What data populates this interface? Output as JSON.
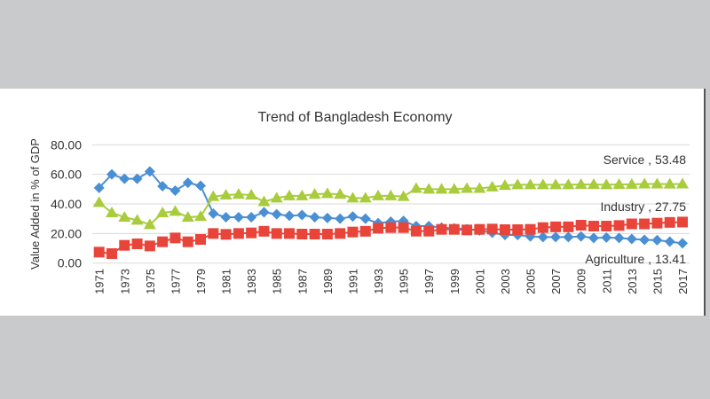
{
  "chart_data": {
    "type": "line",
    "title": "Trend of Bangladesh Economy",
    "xlabel": "",
    "ylabel": "Value Added in % of GDP",
    "ylim": [
      0,
      80
    ],
    "yticks": [
      "0.00",
      "20.00",
      "40.00",
      "60.00",
      "80.00"
    ],
    "grid": true,
    "x": [
      1971,
      1972,
      1973,
      1974,
      1975,
      1976,
      1977,
      1978,
      1979,
      1980,
      1981,
      1982,
      1983,
      1984,
      1985,
      1986,
      1987,
      1988,
      1989,
      1990,
      1991,
      1992,
      1993,
      1994,
      1995,
      1996,
      1997,
      1998,
      1999,
      2000,
      2001,
      2002,
      2003,
      2004,
      2005,
      2006,
      2007,
      2008,
      2009,
      2010,
      2011,
      2012,
      2013,
      2014,
      2015,
      2016,
      2017
    ],
    "xtick_labels": [
      "1971",
      "1973",
      "1975",
      "1977",
      "1979",
      "1981",
      "1983",
      "1985",
      "1987",
      "1989",
      "1991",
      "1993",
      "1995",
      "1997",
      "1999",
      "2001",
      "2003",
      "2005",
      "2007",
      "2009",
      "2011",
      "2013",
      "2015",
      "2017"
    ],
    "series": [
      {
        "name": "Agriculture",
        "color": "#4a8fd4",
        "marker": "diamond",
        "end_label": "Agriculture , 13.41",
        "values": [
          50.9,
          60,
          57,
          57,
          62,
          52,
          49,
          54.3,
          52.3,
          33.5,
          31,
          31,
          31,
          34.4,
          33,
          32,
          32.5,
          31,
          30.5,
          30,
          31.5,
          30,
          27,
          28,
          28.5,
          25,
          25,
          24,
          23.5,
          23,
          22,
          20.5,
          19,
          19,
          18,
          17.6,
          17.6,
          17.6,
          18,
          17,
          17.3,
          17,
          16.3,
          15.7,
          15.5,
          14.5,
          13.41
        ]
      },
      {
        "name": "Industry",
        "color": "#e8443a",
        "marker": "square",
        "end_label": "Industry , 27.75",
        "values": [
          7.4,
          6.4,
          12,
          13,
          11.6,
          14.4,
          17,
          14.4,
          16,
          20,
          19.4,
          20,
          20.4,
          21.5,
          20,
          20,
          19.6,
          19.6,
          19.6,
          20,
          21,
          21.5,
          23.6,
          24,
          24,
          21.6,
          21.6,
          22.8,
          22.8,
          22.4,
          22.8,
          23,
          22.6,
          22.6,
          22.8,
          24,
          24.5,
          24.5,
          25.6,
          25,
          25,
          25.4,
          26.5,
          26.5,
          27,
          27.5,
          27.75
        ]
      },
      {
        "name": "Service",
        "color": "#a8cc3c",
        "marker": "triangle",
        "end_label": "Service , 53.48",
        "values": [
          41,
          34,
          31,
          29,
          26,
          34,
          35,
          31,
          31.5,
          45,
          46,
          46.5,
          46,
          41.5,
          44,
          45.5,
          45.5,
          46.5,
          47,
          46.5,
          44,
          44,
          45.5,
          45.5,
          45,
          50.5,
          50,
          50,
          50,
          50.5,
          50.5,
          51.5,
          52.5,
          53,
          53,
          53,
          53,
          53,
          53.2,
          53.2,
          53,
          53.2,
          53.3,
          53.5,
          53.5,
          53.4,
          53.48
        ]
      }
    ]
  }
}
